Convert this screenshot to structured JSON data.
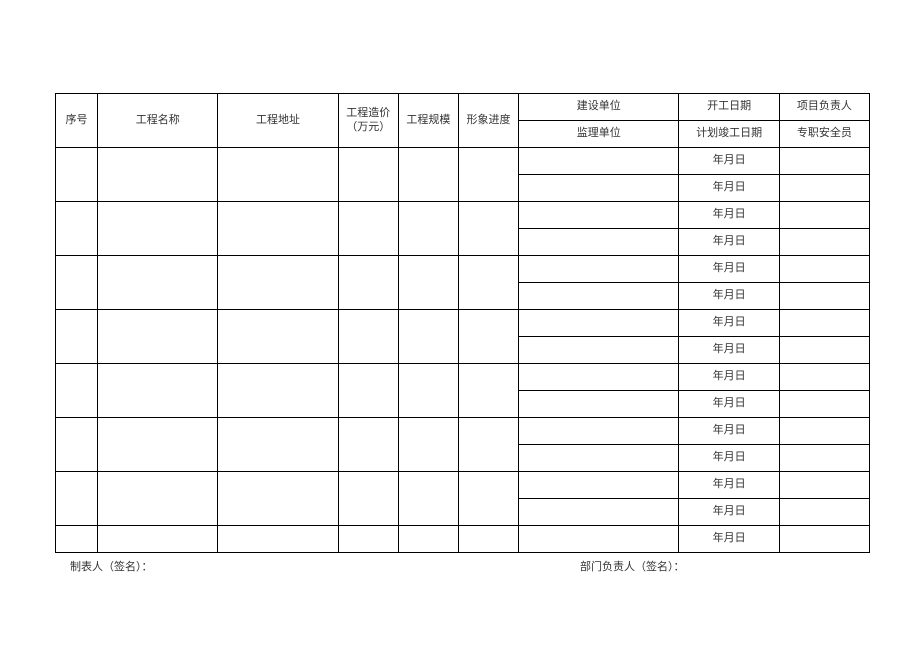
{
  "table": {
    "headers": {
      "seq": "序号",
      "name": "工程名称",
      "addr": "工程地址",
      "cost": "工程造价（万元）",
      "scale": "工程规模",
      "prog": "形象进度",
      "unit_top": "建设单位",
      "unit_bot": "监理单位",
      "date_top": "开工日期",
      "date_bot": "计划竣工日期",
      "person_top": "项目负责人",
      "person_bot": "专职安全员"
    },
    "date_placeholder": "年月日",
    "row_count": 8,
    "colors": {
      "border": "#000000",
      "text": "#333333",
      "background": "#ffffff"
    },
    "fontsize": 11
  },
  "footer": {
    "left": "制表人（签名）：",
    "right": "部门负责人（签名）："
  }
}
